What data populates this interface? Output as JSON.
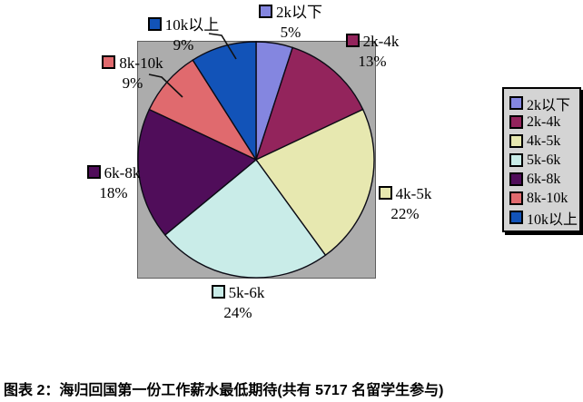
{
  "figure": {
    "caption": "图表 2：海归回国第一份工作薪水最低期待(共有 5717 名留学生参与)"
  },
  "chart_data": {
    "type": "pie",
    "title": "",
    "categories": [
      "2k以下",
      "2k-4k",
      "4k-5k",
      "5k-6k",
      "6k-8k",
      "8k-10k",
      "10k以上"
    ],
    "values": [
      5,
      13,
      22,
      24,
      18,
      9,
      9
    ],
    "unit": "%",
    "value_labels": [
      "5%",
      "13%",
      "22%",
      "24%",
      "18%",
      "9%",
      "9%"
    ],
    "colors": [
      "#8486E0",
      "#93245C",
      "#E7E8B0",
      "#C9ECE8",
      "#500D5A",
      "#E06A6E",
      "#1253B8"
    ],
    "slice_border_color": "#0B0B15",
    "plot_bg": "#ACACAC",
    "legend_bg": "#D4D4D4",
    "legend_position": "right",
    "start_angle_deg": 0,
    "direction": "clockwise"
  }
}
